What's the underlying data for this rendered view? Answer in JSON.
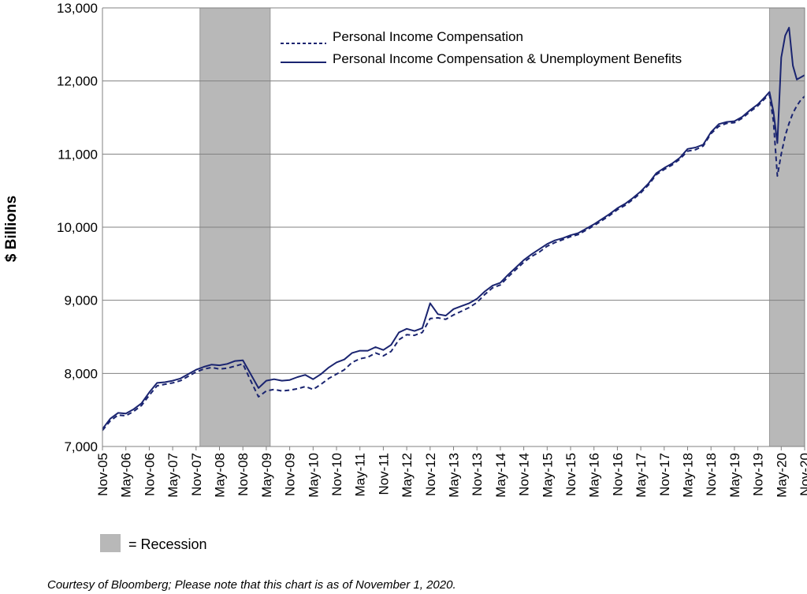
{
  "chart_data": {
    "type": "line",
    "title": "",
    "ylabel": "$ Billions",
    "xlabel": "",
    "ylim": [
      7000,
      13000
    ],
    "yticks": [
      7000,
      8000,
      9000,
      10000,
      11000,
      12000,
      13000
    ],
    "ytick_labels": [
      "7,000",
      "8,000",
      "9,000",
      "10,000",
      "11,000",
      "12,000",
      "13,000"
    ],
    "x_start": "2005-11",
    "x_end": "2020-11",
    "xtick_labels": [
      "Nov-05",
      "May-06",
      "Nov-06",
      "May-07",
      "Nov-07",
      "May-08",
      "Nov-08",
      "May-09",
      "Nov-09",
      "May-10",
      "Nov-10",
      "May-11",
      "Nov-11",
      "May-12",
      "Nov-12",
      "May-13",
      "Nov-13",
      "May-14",
      "Nov-14",
      "May-15",
      "Nov-15",
      "May-16",
      "Nov-16",
      "May-17",
      "Nov-17",
      "May-18",
      "Nov-18",
      "May-19",
      "Nov-19",
      "May-20",
      "Nov-20"
    ],
    "grid": "horizontal",
    "legend_position": "top-center",
    "recessions": [
      {
        "start": "2007-12",
        "end": "2009-06",
        "label": "= Recession"
      },
      {
        "start": "2020-02",
        "end": "2020-11"
      }
    ],
    "colors": {
      "line": "#1a2470",
      "recession": "#b8b8b8",
      "grid": "#808080"
    },
    "series": [
      {
        "name": "Personal Income Compensation",
        "style": "dashed",
        "points": [
          [
            "2005-11",
            7220
          ],
          [
            "2006-01",
            7350
          ],
          [
            "2006-03",
            7430
          ],
          [
            "2006-05",
            7420
          ],
          [
            "2006-07",
            7480
          ],
          [
            "2006-09",
            7560
          ],
          [
            "2006-11",
            7700
          ],
          [
            "2007-01",
            7830
          ],
          [
            "2007-03",
            7850
          ],
          [
            "2007-05",
            7870
          ],
          [
            "2007-07",
            7900
          ],
          [
            "2007-09",
            7960
          ],
          [
            "2007-11",
            8020
          ],
          [
            "2008-01",
            8060
          ],
          [
            "2008-03",
            8080
          ],
          [
            "2008-05",
            8060
          ],
          [
            "2008-07",
            8070
          ],
          [
            "2008-09",
            8100
          ],
          [
            "2008-11",
            8130
          ],
          [
            "2009-01",
            7900
          ],
          [
            "2009-03",
            7680
          ],
          [
            "2009-05",
            7760
          ],
          [
            "2009-07",
            7780
          ],
          [
            "2009-09",
            7760
          ],
          [
            "2009-11",
            7770
          ],
          [
            "2010-01",
            7790
          ],
          [
            "2010-03",
            7820
          ],
          [
            "2010-05",
            7780
          ],
          [
            "2010-07",
            7850
          ],
          [
            "2010-09",
            7930
          ],
          [
            "2010-11",
            7990
          ],
          [
            "2011-01",
            8050
          ],
          [
            "2011-03",
            8150
          ],
          [
            "2011-05",
            8200
          ],
          [
            "2011-07",
            8220
          ],
          [
            "2011-09",
            8280
          ],
          [
            "2011-11",
            8240
          ],
          [
            "2012-01",
            8300
          ],
          [
            "2012-03",
            8460
          ],
          [
            "2012-05",
            8530
          ],
          [
            "2012-07",
            8520
          ],
          [
            "2012-09",
            8560
          ],
          [
            "2012-11",
            8750
          ],
          [
            "2013-01",
            8760
          ],
          [
            "2013-03",
            8740
          ],
          [
            "2013-05",
            8800
          ],
          [
            "2013-07",
            8850
          ],
          [
            "2013-09",
            8900
          ],
          [
            "2013-11",
            8970
          ],
          [
            "2014-01",
            9080
          ],
          [
            "2014-03",
            9170
          ],
          [
            "2014-05",
            9210
          ],
          [
            "2014-07",
            9320
          ],
          [
            "2014-09",
            9420
          ],
          [
            "2014-11",
            9520
          ],
          [
            "2015-01",
            9600
          ],
          [
            "2015-03",
            9660
          ],
          [
            "2015-05",
            9740
          ],
          [
            "2015-07",
            9790
          ],
          [
            "2015-09",
            9830
          ],
          [
            "2015-11",
            9870
          ],
          [
            "2016-01",
            9900
          ],
          [
            "2016-03",
            9960
          ],
          [
            "2016-05",
            10020
          ],
          [
            "2016-07",
            10090
          ],
          [
            "2016-09",
            10160
          ],
          [
            "2016-11",
            10240
          ],
          [
            "2017-01",
            10300
          ],
          [
            "2017-03",
            10380
          ],
          [
            "2017-05",
            10470
          ],
          [
            "2017-07",
            10580
          ],
          [
            "2017-09",
            10720
          ],
          [
            "2017-11",
            10790
          ],
          [
            "2018-01",
            10850
          ],
          [
            "2018-03",
            10930
          ],
          [
            "2018-05",
            11040
          ],
          [
            "2018-07",
            11060
          ],
          [
            "2018-09",
            11110
          ],
          [
            "2018-11",
            11280
          ],
          [
            "2019-01",
            11380
          ],
          [
            "2019-03",
            11420
          ],
          [
            "2019-05",
            11430
          ],
          [
            "2019-07",
            11490
          ],
          [
            "2019-09",
            11580
          ],
          [
            "2019-11",
            11660
          ],
          [
            "2020-01",
            11770
          ],
          [
            "2020-02",
            11810
          ],
          [
            "2020-03",
            11450
          ],
          [
            "2020-04",
            10700
          ],
          [
            "2020-05",
            11000
          ],
          [
            "2020-06",
            11250
          ],
          [
            "2020-07",
            11420
          ],
          [
            "2020-08",
            11560
          ],
          [
            "2020-09",
            11660
          ],
          [
            "2020-10",
            11740
          ],
          [
            "2020-11",
            11790
          ]
        ]
      },
      {
        "name": "Personal Income Compensation & Unemployment Benefits",
        "style": "solid",
        "points": [
          [
            "2005-11",
            7240
          ],
          [
            "2006-01",
            7380
          ],
          [
            "2006-03",
            7460
          ],
          [
            "2006-05",
            7450
          ],
          [
            "2006-07",
            7510
          ],
          [
            "2006-09",
            7590
          ],
          [
            "2006-11",
            7740
          ],
          [
            "2007-01",
            7870
          ],
          [
            "2007-03",
            7880
          ],
          [
            "2007-05",
            7900
          ],
          [
            "2007-07",
            7930
          ],
          [
            "2007-09",
            7990
          ],
          [
            "2007-11",
            8050
          ],
          [
            "2008-01",
            8090
          ],
          [
            "2008-03",
            8120
          ],
          [
            "2008-05",
            8110
          ],
          [
            "2008-07",
            8130
          ],
          [
            "2008-09",
            8170
          ],
          [
            "2008-11",
            8180
          ],
          [
            "2009-01",
            7990
          ],
          [
            "2009-03",
            7800
          ],
          [
            "2009-05",
            7900
          ],
          [
            "2009-07",
            7920
          ],
          [
            "2009-09",
            7900
          ],
          [
            "2009-11",
            7910
          ],
          [
            "2010-01",
            7950
          ],
          [
            "2010-03",
            7980
          ],
          [
            "2010-05",
            7920
          ],
          [
            "2010-07",
            7990
          ],
          [
            "2010-09",
            8080
          ],
          [
            "2010-11",
            8150
          ],
          [
            "2011-01",
            8190
          ],
          [
            "2011-03",
            8280
          ],
          [
            "2011-05",
            8310
          ],
          [
            "2011-07",
            8310
          ],
          [
            "2011-09",
            8360
          ],
          [
            "2011-11",
            8320
          ],
          [
            "2012-01",
            8390
          ],
          [
            "2012-03",
            8560
          ],
          [
            "2012-05",
            8610
          ],
          [
            "2012-07",
            8580
          ],
          [
            "2012-09",
            8620
          ],
          [
            "2012-11",
            8960
          ],
          [
            "2013-01",
            8810
          ],
          [
            "2013-03",
            8790
          ],
          [
            "2013-05",
            8880
          ],
          [
            "2013-07",
            8920
          ],
          [
            "2013-09",
            8960
          ],
          [
            "2013-11",
            9020
          ],
          [
            "2014-01",
            9120
          ],
          [
            "2014-03",
            9200
          ],
          [
            "2014-05",
            9240
          ],
          [
            "2014-07",
            9350
          ],
          [
            "2014-09",
            9450
          ],
          [
            "2014-11",
            9550
          ],
          [
            "2015-01",
            9630
          ],
          [
            "2015-03",
            9700
          ],
          [
            "2015-05",
            9770
          ],
          [
            "2015-07",
            9820
          ],
          [
            "2015-09",
            9850
          ],
          [
            "2015-11",
            9890
          ],
          [
            "2016-01",
            9920
          ],
          [
            "2016-03",
            9980
          ],
          [
            "2016-05",
            10040
          ],
          [
            "2016-07",
            10110
          ],
          [
            "2016-09",
            10180
          ],
          [
            "2016-11",
            10260
          ],
          [
            "2017-01",
            10320
          ],
          [
            "2017-03",
            10400
          ],
          [
            "2017-05",
            10490
          ],
          [
            "2017-07",
            10600
          ],
          [
            "2017-09",
            10740
          ],
          [
            "2017-11",
            10810
          ],
          [
            "2018-01",
            10870
          ],
          [
            "2018-03",
            10950
          ],
          [
            "2018-05",
            11070
          ],
          [
            "2018-07",
            11090
          ],
          [
            "2018-09",
            11130
          ],
          [
            "2018-11",
            11300
          ],
          [
            "2019-01",
            11410
          ],
          [
            "2019-03",
            11440
          ],
          [
            "2019-05",
            11450
          ],
          [
            "2019-07",
            11510
          ],
          [
            "2019-09",
            11600
          ],
          [
            "2019-11",
            11680
          ],
          [
            "2020-01",
            11790
          ],
          [
            "2020-02",
            11850
          ],
          [
            "2020-03",
            11580
          ],
          [
            "2020-04",
            11150
          ],
          [
            "2020-05",
            12320
          ],
          [
            "2020-06",
            12620
          ],
          [
            "2020-07",
            12730
          ],
          [
            "2020-08",
            12210
          ],
          [
            "2020-09",
            12020
          ],
          [
            "2020-10",
            12050
          ],
          [
            "2020-11",
            12080
          ]
        ]
      }
    ]
  },
  "footer": {
    "credit": "Courtesy of Bloomberg; Please note that this chart is as of November 1, 2020."
  }
}
